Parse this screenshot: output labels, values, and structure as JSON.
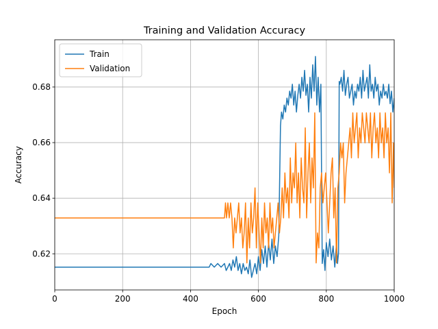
{
  "chart_data": {
    "type": "line",
    "title": "Training and Validation Accuracy",
    "xlabel": "Epoch",
    "ylabel": "Accuracy",
    "xlim": [
      0,
      1000
    ],
    "ylim": [
      0.607,
      0.697
    ],
    "xticks": [
      0,
      200,
      400,
      600,
      800,
      1000
    ],
    "xtick_labels": [
      "0",
      "200",
      "400",
      "600",
      "800",
      "1000"
    ],
    "yticks": [
      0.62,
      0.64,
      0.66,
      0.68
    ],
    "ytick_labels": [
      "0.62",
      "0.64",
      "0.66",
      "0.68"
    ],
    "grid": true,
    "legend_position": "top-left",
    "series": [
      {
        "name": "Train",
        "color": "#1f77b4",
        "x": [
          0,
          100,
          200,
          300,
          400,
          455,
          460,
          470,
          480,
          490,
          500,
          505,
          510,
          515,
          520,
          525,
          530,
          535,
          540,
          545,
          550,
          555,
          560,
          565,
          570,
          575,
          580,
          585,
          590,
          595,
          600,
          605,
          610,
          615,
          620,
          625,
          630,
          635,
          640,
          645,
          650,
          655,
          660,
          665,
          668,
          672,
          676,
          680,
          684,
          688,
          692,
          696,
          700,
          704,
          708,
          712,
          716,
          720,
          724,
          728,
          732,
          736,
          740,
          744,
          748,
          752,
          756,
          760,
          764,
          768,
          772,
          776,
          780,
          784,
          788,
          792,
          796,
          800,
          805,
          810,
          815,
          820,
          825,
          830,
          833,
          836,
          838,
          840,
          844,
          848,
          852,
          856,
          860,
          864,
          868,
          872,
          876,
          880,
          884,
          888,
          892,
          896,
          900,
          904,
          908,
          912,
          916,
          920,
          924,
          928,
          932,
          936,
          940,
          944,
          948,
          952,
          956,
          960,
          964,
          968,
          972,
          976,
          980,
          984,
          988,
          992,
          996,
          1000
        ],
        "y": [
          0.6152,
          0.6152,
          0.6152,
          0.6152,
          0.6152,
          0.6152,
          0.6165,
          0.6152,
          0.6165,
          0.6152,
          0.6165,
          0.614,
          0.6152,
          0.6165,
          0.614,
          0.6178,
          0.6152,
          0.619,
          0.614,
          0.6165,
          0.6128,
          0.6165,
          0.614,
          0.6152,
          0.6128,
          0.6178,
          0.6115,
          0.614,
          0.6165,
          0.6128,
          0.619,
          0.614,
          0.6215,
          0.6165,
          0.6228,
          0.6152,
          0.624,
          0.6178,
          0.6253,
          0.6165,
          0.6228,
          0.619,
          0.6265,
          0.666,
          0.671,
          0.6685,
          0.6735,
          0.671,
          0.676,
          0.6735,
          0.6785,
          0.676,
          0.681,
          0.6735,
          0.6785,
          0.671,
          0.677,
          0.681,
          0.676,
          0.6835,
          0.6785,
          0.686,
          0.677,
          0.681,
          0.671,
          0.6835,
          0.676,
          0.688,
          0.6785,
          0.691,
          0.6735,
          0.6835,
          0.671,
          0.681,
          0.6165,
          0.6215,
          0.614,
          0.624,
          0.619,
          0.6253,
          0.6178,
          0.6228,
          0.6152,
          0.624,
          0.6165,
          0.6203,
          0.682,
          0.681,
          0.6835,
          0.6785,
          0.686,
          0.677,
          0.681,
          0.6835,
          0.676,
          0.6785,
          0.681,
          0.6735,
          0.6785,
          0.676,
          0.681,
          0.6785,
          0.6835,
          0.676,
          0.686,
          0.6785,
          0.681,
          0.6835,
          0.676,
          0.688,
          0.6785,
          0.681,
          0.676,
          0.6835,
          0.6785,
          0.681,
          0.6735,
          0.6785,
          0.676,
          0.681,
          0.677,
          0.6785,
          0.676,
          0.681,
          0.674,
          0.6785,
          0.671,
          0.676
        ]
      },
      {
        "name": "Validation",
        "color": "#ff7f0e",
        "x": [
          0,
          100,
          200,
          300,
          400,
          450,
          500,
          503,
          506,
          510,
          514,
          518,
          522,
          526,
          530,
          534,
          538,
          542,
          546,
          550,
          554,
          558,
          562,
          566,
          570,
          574,
          578,
          582,
          586,
          590,
          594,
          598,
          602,
          606,
          610,
          614,
          618,
          622,
          626,
          630,
          634,
          638,
          642,
          646,
          650,
          654,
          658,
          662,
          666,
          670,
          674,
          678,
          682,
          686,
          690,
          694,
          698,
          702,
          706,
          710,
          714,
          718,
          722,
          726,
          730,
          734,
          738,
          742,
          746,
          750,
          754,
          758,
          762,
          766,
          770,
          774,
          778,
          782,
          786,
          790,
          794,
          798,
          802,
          806,
          810,
          814,
          818,
          822,
          826,
          830,
          834,
          838,
          842,
          846,
          850,
          854,
          858,
          862,
          866,
          870,
          874,
          878,
          882,
          886,
          890,
          894,
          898,
          902,
          906,
          910,
          914,
          918,
          922,
          926,
          930,
          934,
          938,
          942,
          946,
          950,
          954,
          958,
          962,
          966,
          970,
          974,
          978,
          982,
          986,
          990,
          994,
          998,
          1000
        ],
        "y": [
          0.6329,
          0.6329,
          0.6329,
          0.6329,
          0.6329,
          0.6329,
          0.6329,
          0.6383,
          0.6329,
          0.6383,
          0.6329,
          0.6383,
          0.6329,
          0.6221,
          0.6329,
          0.6275,
          0.6329,
          0.6383,
          0.6275,
          0.6329,
          0.6221,
          0.6275,
          0.6383,
          0.6167,
          0.6329,
          0.6221,
          0.6383,
          0.6275,
          0.6329,
          0.6437,
          0.6221,
          0.6383,
          0.6275,
          0.6167,
          0.6329,
          0.6221,
          0.6383,
          0.6275,
          0.6329,
          0.6221,
          0.6383,
          0.6275,
          0.6329,
          0.6221,
          0.6275,
          0.6329,
          0.6383,
          0.6275,
          0.6329,
          0.6437,
          0.6329,
          0.6491,
          0.6383,
          0.6437,
          0.6329,
          0.6545,
          0.6383,
          0.6491,
          0.6437,
          0.6599,
          0.6383,
          0.6491,
          0.6329,
          0.6545,
          0.6437,
          0.6383,
          0.6653,
          0.6329,
          0.6491,
          0.6599,
          0.6383,
          0.6545,
          0.6437,
          0.6707,
          0.6167,
          0.6275,
          0.6221,
          0.6437,
          0.6491,
          0.6383,
          0.6437,
          0.6491,
          0.6383,
          0.6275,
          0.6383,
          0.6491,
          0.6545,
          0.6329,
          0.6437,
          0.6167,
          0.6437,
          0.6491,
          0.6599,
          0.6545,
          0.6599,
          0.6383,
          0.6491,
          0.6545,
          0.6599,
          0.6653,
          0.6545,
          0.6707,
          0.6599,
          0.6653,
          0.6707,
          0.6545,
          0.6653,
          0.6599,
          0.6707,
          0.6653,
          0.6599,
          0.6707,
          0.6653,
          0.6599,
          0.6707,
          0.6545,
          0.6653,
          0.6707,
          0.6599,
          0.6653,
          0.6545,
          0.6707,
          0.6599,
          0.6653,
          0.6545,
          0.6707,
          0.6599,
          0.6653,
          0.6491,
          0.6707,
          0.6383,
          0.6599,
          0.6437
        ]
      }
    ]
  }
}
